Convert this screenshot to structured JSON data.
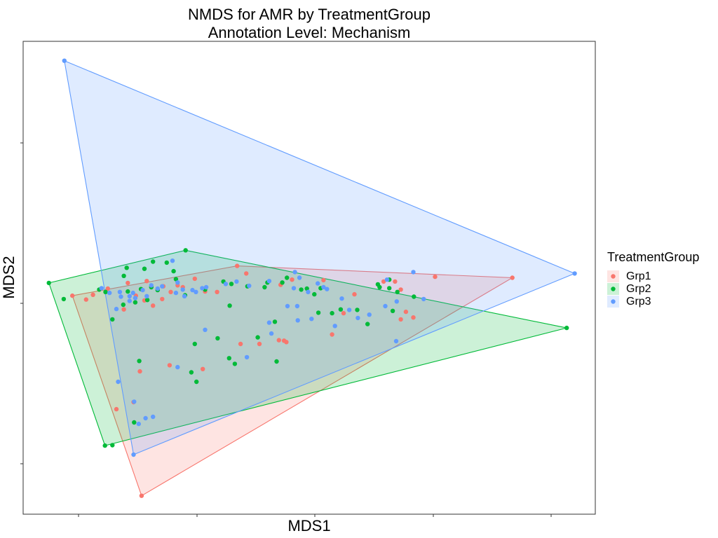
{
  "chart_data": {
    "type": "scatter",
    "title": "NMDS for AMR by TreatmentGroup",
    "subtitle": "Annotation Level: Mechanism",
    "xlabel": "MDS1",
    "ylabel": "MDS2",
    "xlim": [
      0,
      1
    ],
    "ylim": [
      0,
      1
    ],
    "grid": false,
    "legend": {
      "title": "TreatmentGroup",
      "position": "right"
    },
    "series": [
      {
        "name": "Grp1",
        "color": "#F8766D",
        "hull": [
          [
            0.207,
            0.039
          ],
          [
            0.086,
            0.462
          ],
          [
            0.374,
            0.525
          ],
          [
            0.855,
            0.5
          ]
        ],
        "points": [
          [
            0.207,
            0.039
          ],
          [
            0.086,
            0.462
          ],
          [
            0.374,
            0.525
          ],
          [
            0.855,
            0.5
          ],
          [
            0.122,
            0.464
          ],
          [
            0.148,
            0.477
          ],
          [
            0.183,
            0.489
          ],
          [
            0.216,
            0.493
          ],
          [
            0.245,
            0.482
          ],
          [
            0.258,
            0.47
          ],
          [
            0.279,
            0.48
          ],
          [
            0.3,
            0.498
          ],
          [
            0.339,
            0.47
          ],
          [
            0.39,
            0.509
          ],
          [
            0.45,
            0.485
          ],
          [
            0.47,
            0.496
          ],
          [
            0.525,
            0.495
          ],
          [
            0.54,
            0.38
          ],
          [
            0.56,
            0.425
          ],
          [
            0.579,
            0.465
          ],
          [
            0.66,
            0.412
          ],
          [
            0.65,
            0.492
          ],
          [
            0.204,
            0.302
          ],
          [
            0.256,
            0.315
          ],
          [
            0.314,
            0.307
          ],
          [
            0.38,
            0.36
          ],
          [
            0.413,
            0.36
          ],
          [
            0.447,
            0.368
          ],
          [
            0.193,
            0.237
          ],
          [
            0.163,
            0.222
          ],
          [
            0.227,
            0.441
          ],
          [
            0.176,
            0.433
          ],
          [
            0.212,
            0.452
          ],
          [
            0.243,
            0.455
          ],
          [
            0.456,
            0.367
          ],
          [
            0.46,
            0.364
          ],
          [
            0.66,
            0.475
          ],
          [
            0.63,
            0.492
          ],
          [
            0.669,
            0.428
          ],
          [
            0.72,
            0.502
          ],
          [
            0.682,
            0.416
          ],
          [
            0.197,
            0.462
          ],
          [
            0.27,
            0.484
          ],
          [
            0.318,
            0.471
          ],
          [
            0.11,
            0.454
          ]
        ]
      },
      {
        "name": "Grp2",
        "color": "#00BA38",
        "hull": [
          [
            0.143,
            0.145
          ],
          [
            0.045,
            0.489
          ],
          [
            0.284,
            0.558
          ],
          [
            0.95,
            0.394
          ]
        ],
        "points": [
          [
            0.143,
            0.145
          ],
          [
            0.045,
            0.489
          ],
          [
            0.284,
            0.558
          ],
          [
            0.95,
            0.394
          ],
          [
            0.071,
            0.455
          ],
          [
            0.156,
            0.146
          ],
          [
            0.133,
            0.475
          ],
          [
            0.181,
            0.521
          ],
          [
            0.183,
            0.471
          ],
          [
            0.212,
            0.519
          ],
          [
            0.227,
            0.534
          ],
          [
            0.251,
            0.532
          ],
          [
            0.263,
            0.514
          ],
          [
            0.217,
            0.453
          ],
          [
            0.235,
            0.474
          ],
          [
            0.175,
            0.443
          ],
          [
            0.144,
            0.47
          ],
          [
            0.196,
            0.448
          ],
          [
            0.224,
            0.48
          ],
          [
            0.267,
            0.497
          ],
          [
            0.283,
            0.463
          ],
          [
            0.318,
            0.475
          ],
          [
            0.35,
            0.492
          ],
          [
            0.364,
            0.487
          ],
          [
            0.361,
            0.441
          ],
          [
            0.422,
            0.48
          ],
          [
            0.427,
            0.49
          ],
          [
            0.453,
            0.49
          ],
          [
            0.461,
            0.5
          ],
          [
            0.486,
            0.475
          ],
          [
            0.496,
            0.477
          ],
          [
            0.509,
            0.465
          ],
          [
            0.54,
            0.425
          ],
          [
            0.555,
            0.433
          ],
          [
            0.62,
            0.486
          ],
          [
            0.64,
            0.478
          ],
          [
            0.654,
            0.47
          ],
          [
            0.646,
            0.43
          ],
          [
            0.602,
            0.402
          ],
          [
            0.584,
            0.432
          ],
          [
            0.623,
            0.48
          ],
          [
            0.34,
            0.372
          ],
          [
            0.36,
            0.33
          ],
          [
            0.37,
            0.318
          ],
          [
            0.294,
            0.3
          ],
          [
            0.41,
            0.374
          ],
          [
            0.443,
            0.323
          ],
          [
            0.203,
            0.324
          ],
          [
            0.303,
            0.28
          ],
          [
            0.44,
            0.407
          ],
          [
            0.516,
            0.426
          ],
          [
            0.194,
            0.194
          ],
          [
            0.156,
            0.412
          ],
          [
            0.3,
            0.36
          ],
          [
            0.392,
            0.482
          ],
          [
            0.52,
            0.478
          ],
          [
            0.64,
            0.496
          ],
          [
            0.683,
            0.46
          ],
          [
            0.206,
            0.476
          ],
          [
            0.176,
            0.504
          ]
        ]
      },
      {
        "name": "Grp3",
        "color": "#619CFF",
        "hull": [
          [
            0.072,
            0.959
          ],
          [
            0.964,
            0.509
          ],
          [
            0.193,
            0.126
          ]
        ],
        "points": [
          [
            0.072,
            0.959
          ],
          [
            0.964,
            0.509
          ],
          [
            0.193,
            0.126
          ],
          [
            0.137,
            0.478
          ],
          [
            0.163,
            0.434
          ],
          [
            0.186,
            0.461
          ],
          [
            0.192,
            0.468
          ],
          [
            0.209,
            0.474
          ],
          [
            0.235,
            0.477
          ],
          [
            0.27,
            0.49
          ],
          [
            0.279,
            0.475
          ],
          [
            0.296,
            0.474
          ],
          [
            0.313,
            0.478
          ],
          [
            0.32,
            0.48
          ],
          [
            0.354,
            0.487
          ],
          [
            0.373,
            0.492
          ],
          [
            0.395,
            0.483
          ],
          [
            0.43,
            0.493
          ],
          [
            0.475,
            0.512
          ],
          [
            0.483,
            0.5
          ],
          [
            0.515,
            0.488
          ],
          [
            0.525,
            0.48
          ],
          [
            0.557,
            0.456
          ],
          [
            0.57,
            0.432
          ],
          [
            0.585,
            0.415
          ],
          [
            0.605,
            0.422
          ],
          [
            0.633,
            0.44
          ],
          [
            0.653,
            0.45
          ],
          [
            0.7,
            0.455
          ],
          [
            0.682,
            0.512
          ],
          [
            0.636,
            0.496
          ],
          [
            0.48,
            0.41
          ],
          [
            0.462,
            0.44
          ],
          [
            0.43,
            0.405
          ],
          [
            0.434,
            0.382
          ],
          [
            0.391,
            0.332
          ],
          [
            0.27,
            0.311
          ],
          [
            0.318,
            0.39
          ],
          [
            0.504,
            0.413
          ],
          [
            0.479,
            0.44
          ],
          [
            0.652,
            0.366
          ],
          [
            0.243,
            0.482
          ],
          [
            0.267,
            0.468
          ],
          [
            0.282,
            0.461
          ],
          [
            0.302,
            0.47
          ],
          [
            0.196,
            0.457
          ],
          [
            0.186,
            0.451
          ],
          [
            0.171,
            0.46
          ],
          [
            0.216,
            0.461
          ],
          [
            0.166,
            0.28
          ],
          [
            0.194,
            0.238
          ],
          [
            0.214,
            0.203
          ],
          [
            0.227,
            0.206
          ],
          [
            0.202,
            0.191
          ],
          [
            0.169,
            0.47
          ],
          [
            0.224,
            0.484
          ],
          [
            0.261,
            0.536
          ],
          [
            0.473,
            0.478
          ],
          [
            0.498,
            0.47
          ],
          [
            0.531,
            0.476
          ],
          [
            0.545,
            0.398
          ],
          [
            0.151,
            0.468
          ]
        ]
      }
    ]
  }
}
